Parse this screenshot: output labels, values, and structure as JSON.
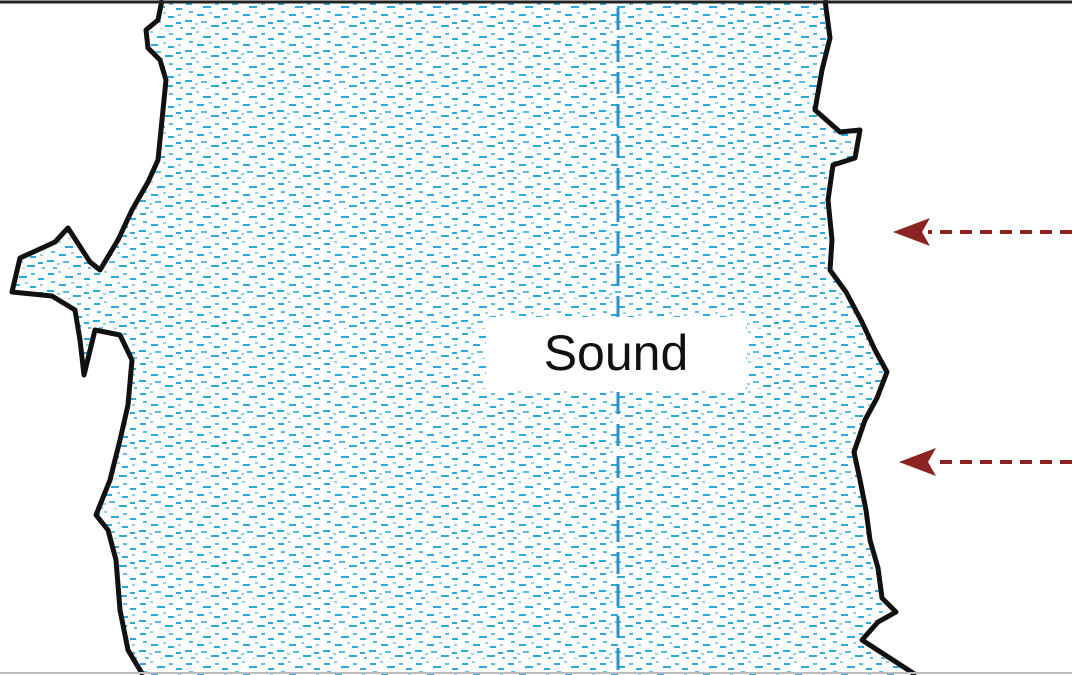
{
  "map": {
    "water_label": "Sound"
  },
  "colors": {
    "water_speckle": "#2aa9dc",
    "water_speckle_light": "#8fd3ef",
    "centerline": "#2b8fce",
    "shoreline": "#111111",
    "arrow": "#8b2323",
    "frame": "#222222"
  },
  "features": {
    "centerline_style": "dashed",
    "arrows": [
      {
        "direction": "west",
        "style": "dashed"
      },
      {
        "direction": "west",
        "style": "dashed"
      }
    ]
  }
}
